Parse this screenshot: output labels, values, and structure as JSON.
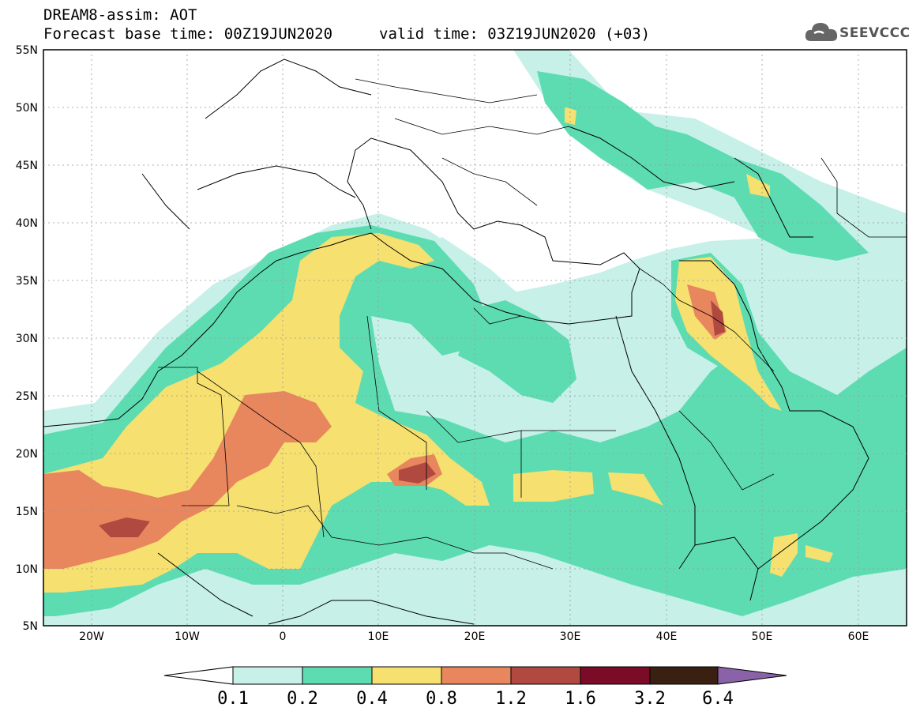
{
  "header": {
    "title": "DREAM8-assim: AOT",
    "forecast_base": "Forecast base time: 00Z19JUN2020",
    "valid_time": "valid time: 03Z19JUN2020 (+03)"
  },
  "logo": {
    "text": "SEEVCCC",
    "icon": "cloud-icon"
  },
  "axes": {
    "lat_labels": [
      "55N",
      "50N",
      "45N",
      "40N",
      "35N",
      "30N",
      "25N",
      "20N",
      "15N",
      "10N",
      "5N"
    ],
    "lon_labels": [
      "20W",
      "10W",
      "0",
      "10E",
      "20E",
      "30E",
      "40E",
      "50E",
      "60E"
    ]
  },
  "colorbar": {
    "labels": [
      "0.1",
      "0.2",
      "0.4",
      "0.8",
      "1.2",
      "1.6",
      "3.2",
      "6.4"
    ],
    "colors": [
      "#ffffff",
      "#c6f0e8",
      "#5ddcb2",
      "#f5e070",
      "#e8865e",
      "#b04a40",
      "#7a0c28",
      "#3a2010",
      "#8a62a8"
    ]
  },
  "colors": {
    "aot_0_1": "#c6f0e8",
    "aot_0_2": "#5ddcb2",
    "aot_0_4": "#f5e070",
    "aot_0_8": "#e8865e",
    "aot_1_2": "#b04a40",
    "aot_1_6": "#7a0c28",
    "aot_3_2": "#3a2010",
    "aot_6_4": "#8a62a8"
  }
}
